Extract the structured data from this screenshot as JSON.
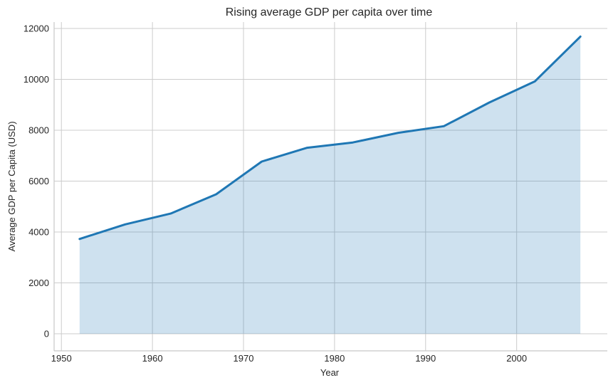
{
  "chart_data": {
    "type": "area",
    "title": "Rising average GDP per capita over time",
    "xlabel": "Year",
    "ylabel": "Average GDP per Capita (USD)",
    "x": [
      1952,
      1957,
      1962,
      1967,
      1972,
      1977,
      1982,
      1987,
      1992,
      1997,
      2002,
      2007
    ],
    "values": [
      3725.3,
      4299.4,
      4725.8,
      5483.7,
      6770.1,
      7313.2,
      7518.9,
      7900.9,
      8158.6,
      9090.2,
      9917.8,
      11680.1
    ],
    "xticks": [
      1950,
      1960,
      1970,
      1980,
      1990,
      2000
    ],
    "yticks": [
      0,
      2000,
      4000,
      6000,
      8000,
      10000,
      12000
    ],
    "xlim": [
      1949.2,
      2009.8
    ],
    "ylim": [
      -671,
      12252
    ],
    "grid": true,
    "legend": false,
    "colors": {
      "line": "#1f77b4",
      "fill": "rgba(31,119,180,0.22)",
      "grid": "#cccccc",
      "spine": "#c8c8c8",
      "text": "#262626",
      "background": "#ffffff"
    }
  }
}
